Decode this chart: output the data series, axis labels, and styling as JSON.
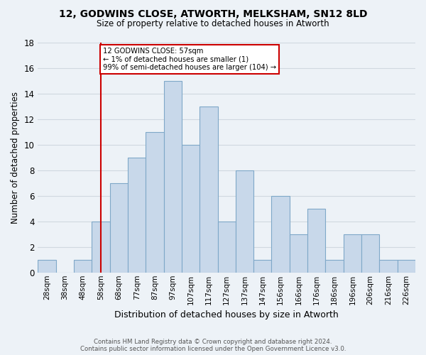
{
  "title": "12, GODWINS CLOSE, ATWORTH, MELKSHAM, SN12 8LD",
  "subtitle": "Size of property relative to detached houses in Atworth",
  "xlabel": "Distribution of detached houses by size in Atworth",
  "ylabel": "Number of detached properties",
  "bin_labels": [
    "28sqm",
    "38sqm",
    "48sqm",
    "58sqm",
    "68sqm",
    "77sqm",
    "87sqm",
    "97sqm",
    "107sqm",
    "117sqm",
    "127sqm",
    "137sqm",
    "147sqm",
    "156sqm",
    "166sqm",
    "176sqm",
    "186sqm",
    "196sqm",
    "206sqm",
    "216sqm",
    "226sqm"
  ],
  "values": [
    1,
    0,
    1,
    4,
    7,
    9,
    11,
    15,
    10,
    13,
    4,
    8,
    1,
    6,
    3,
    5,
    1,
    3,
    3,
    1,
    1
  ],
  "bar_color": "#c8d8ea",
  "bar_edge_color": "#7fa8c8",
  "grid_color": "#d0d8e0",
  "vline_position": 3.5,
  "vline_color": "#cc0000",
  "annotation_text": "12 GODWINS CLOSE: 57sqm\n← 1% of detached houses are smaller (1)\n99% of semi-detached houses are larger (104) →",
  "annotation_box_color": "#ffffff",
  "annotation_border_color": "#cc0000",
  "ylim": [
    0,
    18
  ],
  "yticks": [
    0,
    2,
    4,
    6,
    8,
    10,
    12,
    14,
    16,
    18
  ],
  "footer": "Contains HM Land Registry data © Crown copyright and database right 2024.\nContains public sector information licensed under the Open Government Licence v3.0.",
  "background_color": "#edf2f7"
}
